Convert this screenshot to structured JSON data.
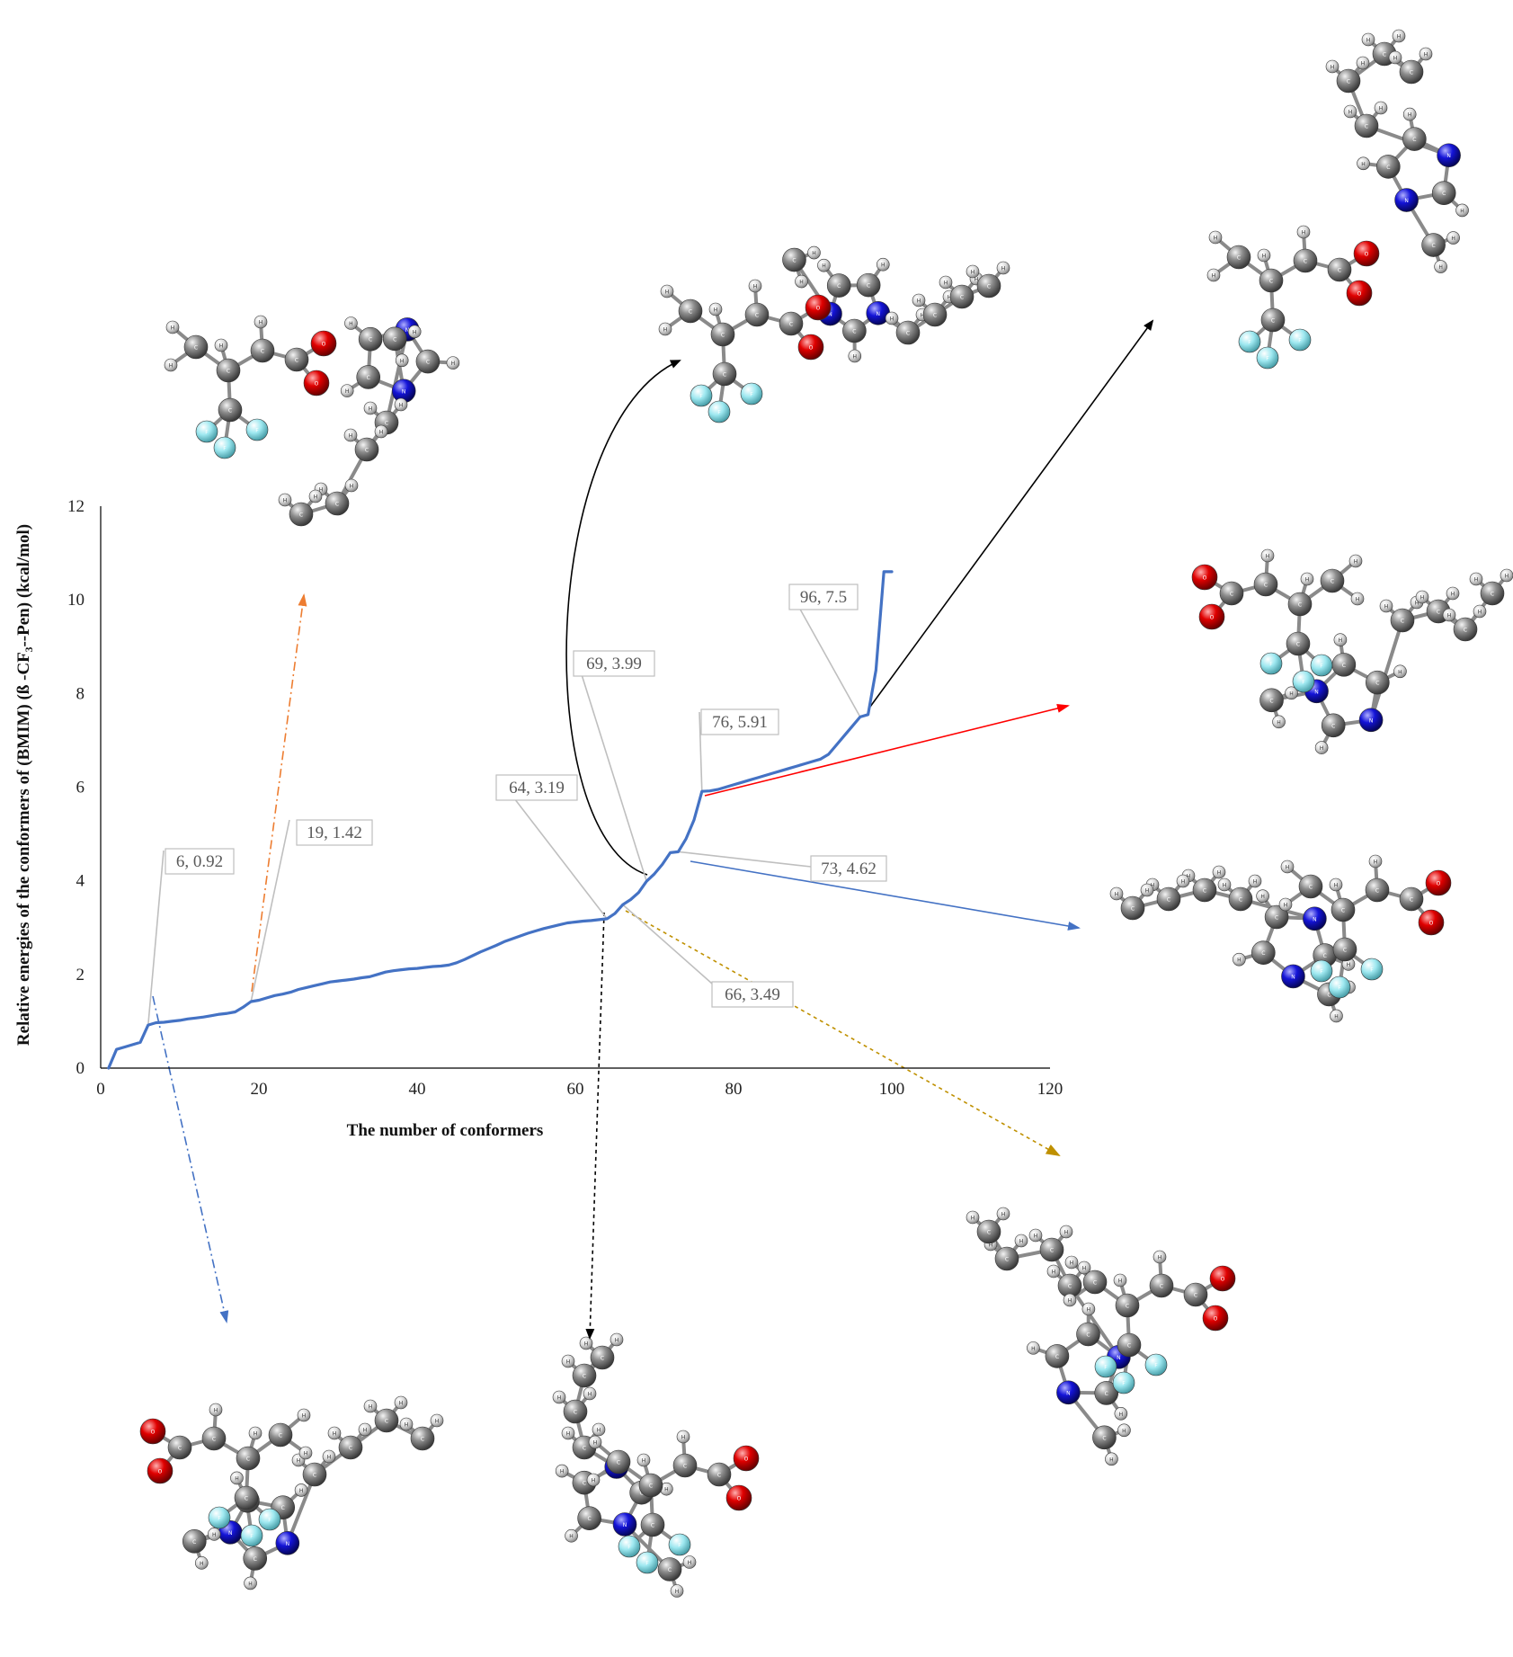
{
  "chart_data": {
    "type": "line",
    "xlabel": "The number of conformers",
    "ylabel": "Relative energies of the conformers of (BMIM) (ß -CF₃--Pen) (kcal/mol)",
    "xlim": [
      0,
      120
    ],
    "ylim": [
      0,
      12
    ],
    "xticks": [
      0,
      20,
      40,
      60,
      80,
      100,
      120
    ],
    "yticks": [
      0,
      2,
      4,
      6,
      8,
      10,
      12
    ],
    "grid": false,
    "line_color": "#4472c4",
    "series": [
      {
        "x": [
          1,
          2,
          3,
          4,
          5,
          6,
          7,
          8,
          9,
          10,
          11,
          12,
          13,
          14,
          15,
          16,
          17,
          18,
          19,
          20,
          21,
          22,
          23,
          24,
          25,
          26,
          27,
          28,
          29,
          30,
          31,
          32,
          33,
          34,
          35,
          36,
          37,
          38,
          39,
          40,
          41,
          42,
          43,
          44,
          45,
          46,
          47,
          48,
          49,
          50,
          51,
          52,
          53,
          54,
          55,
          56,
          57,
          58,
          59,
          60,
          61,
          62,
          63,
          64,
          65,
          66,
          67,
          68,
          69,
          70,
          71,
          72,
          73,
          74,
          75,
          76,
          77,
          78,
          79,
          80,
          81,
          82,
          83,
          84,
          85,
          86,
          87,
          88,
          89,
          90,
          91,
          92,
          93,
          94,
          95,
          96,
          97,
          98,
          99,
          100
        ],
        "values": [
          0,
          0.4,
          0.45,
          0.5,
          0.55,
          0.92,
          0.97,
          0.98,
          1.0,
          1.02,
          1.05,
          1.07,
          1.09,
          1.12,
          1.15,
          1.17,
          1.2,
          1.3,
          1.42,
          1.45,
          1.5,
          1.55,
          1.58,
          1.62,
          1.68,
          1.72,
          1.76,
          1.8,
          1.84,
          1.86,
          1.88,
          1.9,
          1.93,
          1.95,
          2.0,
          2.05,
          2.08,
          2.1,
          2.12,
          2.13,
          2.15,
          2.17,
          2.18,
          2.2,
          2.25,
          2.32,
          2.4,
          2.48,
          2.55,
          2.62,
          2.7,
          2.76,
          2.82,
          2.88,
          2.93,
          2.98,
          3.02,
          3.06,
          3.1,
          3.12,
          3.14,
          3.15,
          3.17,
          3.19,
          3.3,
          3.49,
          3.6,
          3.75,
          3.99,
          4.15,
          4.35,
          4.6,
          4.62,
          4.9,
          5.3,
          5.91,
          5.92,
          5.95,
          6.0,
          6.05,
          6.1,
          6.15,
          6.2,
          6.25,
          6.3,
          6.35,
          6.4,
          6.45,
          6.5,
          6.55,
          6.6,
          6.7,
          6.9,
          7.1,
          7.3,
          7.5,
          7.55,
          8.5,
          10.6,
          10.6
        ]
      }
    ],
    "annotations": [
      {
        "label": "6, 0.92",
        "x": 6,
        "y": 0.92
      },
      {
        "label": "19, 1.42",
        "x": 19,
        "y": 1.42
      },
      {
        "label": "64, 3.19",
        "x": 64,
        "y": 3.19
      },
      {
        "label": "69, 3.99",
        "x": 69,
        "y": 3.99
      },
      {
        "label": "66, 3.49",
        "x": 66,
        "y": 3.49
      },
      {
        "label": "73, 4.62",
        "x": 73,
        "y": 4.62
      },
      {
        "label": "76, 5.91",
        "x": 76,
        "y": 5.91
      },
      {
        "label": "96, 7.5",
        "x": 96,
        "y": 7.5
      }
    ],
    "atom_labels": [
      "H",
      "C",
      "O",
      "N",
      "F"
    ],
    "atom_colors": {
      "C": "#7d7d7d",
      "H": "#e6e6e6",
      "O": "#e00000",
      "N": "#1010d8",
      "F": "#9ee8f0"
    }
  }
}
